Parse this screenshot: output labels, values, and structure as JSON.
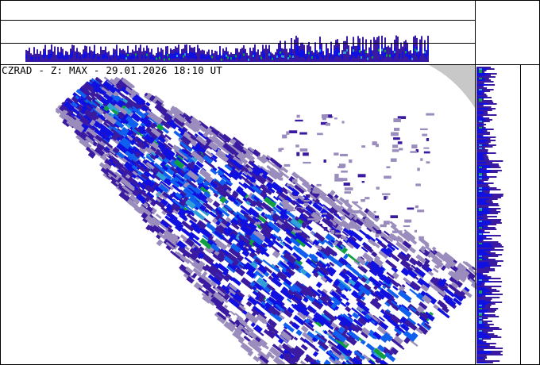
{
  "title": "CZRAD - Z: MAX - 29.01.2026 18:10 UT",
  "product": "MAX",
  "colors": {
    "background": "#ffffff",
    "outside_range": "#c8c8c8",
    "frame": "#000000",
    "echo_levels": [
      "#9a8cbc",
      "#3a1aa0",
      "#1010e0",
      "#1060f0",
      "#30a0d8",
      "#10a040"
    ]
  }
}
